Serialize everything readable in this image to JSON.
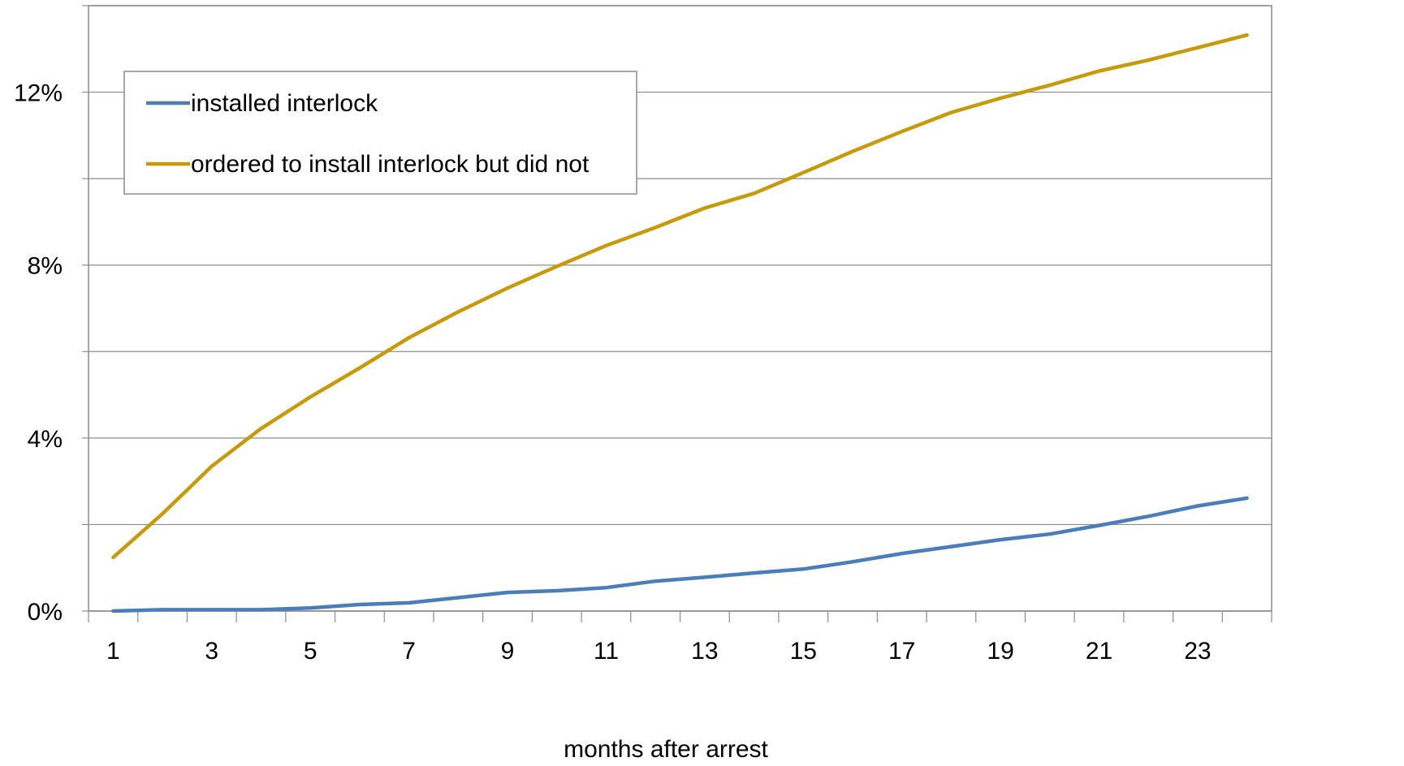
{
  "chart_data": {
    "type": "line",
    "title": "",
    "xlabel": "months after arrest",
    "ylabel": "",
    "x": [
      1,
      2,
      3,
      4,
      5,
      6,
      7,
      8,
      9,
      10,
      11,
      12,
      13,
      14,
      15,
      16,
      17,
      18,
      19,
      20,
      21,
      22,
      23,
      24
    ],
    "x_tick_labels": [
      "1",
      "3",
      "5",
      "7",
      "9",
      "11",
      "13",
      "15",
      "17",
      "19",
      "21",
      "23"
    ],
    "ylim": [
      0,
      0.14
    ],
    "y_ticks": [
      0,
      0.02,
      0.04,
      0.06,
      0.08,
      0.1,
      0.12,
      0.14
    ],
    "y_tick_labels": [
      "0%",
      "4%",
      "8%",
      "12%"
    ],
    "y_tick_label_values": [
      0,
      0.04,
      0.08,
      0.12
    ],
    "grid": true,
    "legend_position": "top-left",
    "series": [
      {
        "name": "installed interlock",
        "color": "#4a7ebb",
        "values": [
          0.0,
          0.0003,
          0.0003,
          0.0003,
          0.0007,
          0.0015,
          0.0019,
          0.0031,
          0.0043,
          0.0047,
          0.0054,
          0.0069,
          0.0078,
          0.0088,
          0.0097,
          0.0114,
          0.0133,
          0.0149,
          0.0165,
          0.0178,
          0.0198,
          0.0219,
          0.0243,
          0.0261
        ]
      },
      {
        "name": "ordered to install interlock but did not",
        "color": "#c89a0a",
        "values": [
          0.0124,
          0.0225,
          0.0335,
          0.0422,
          0.0495,
          0.0562,
          0.0632,
          0.0692,
          0.0747,
          0.0797,
          0.0845,
          0.0887,
          0.0932,
          0.0966,
          0.1014,
          0.1063,
          0.1109,
          0.1153,
          0.1186,
          0.1216,
          0.1249,
          0.1274,
          0.1303,
          0.1332
        ]
      }
    ]
  }
}
